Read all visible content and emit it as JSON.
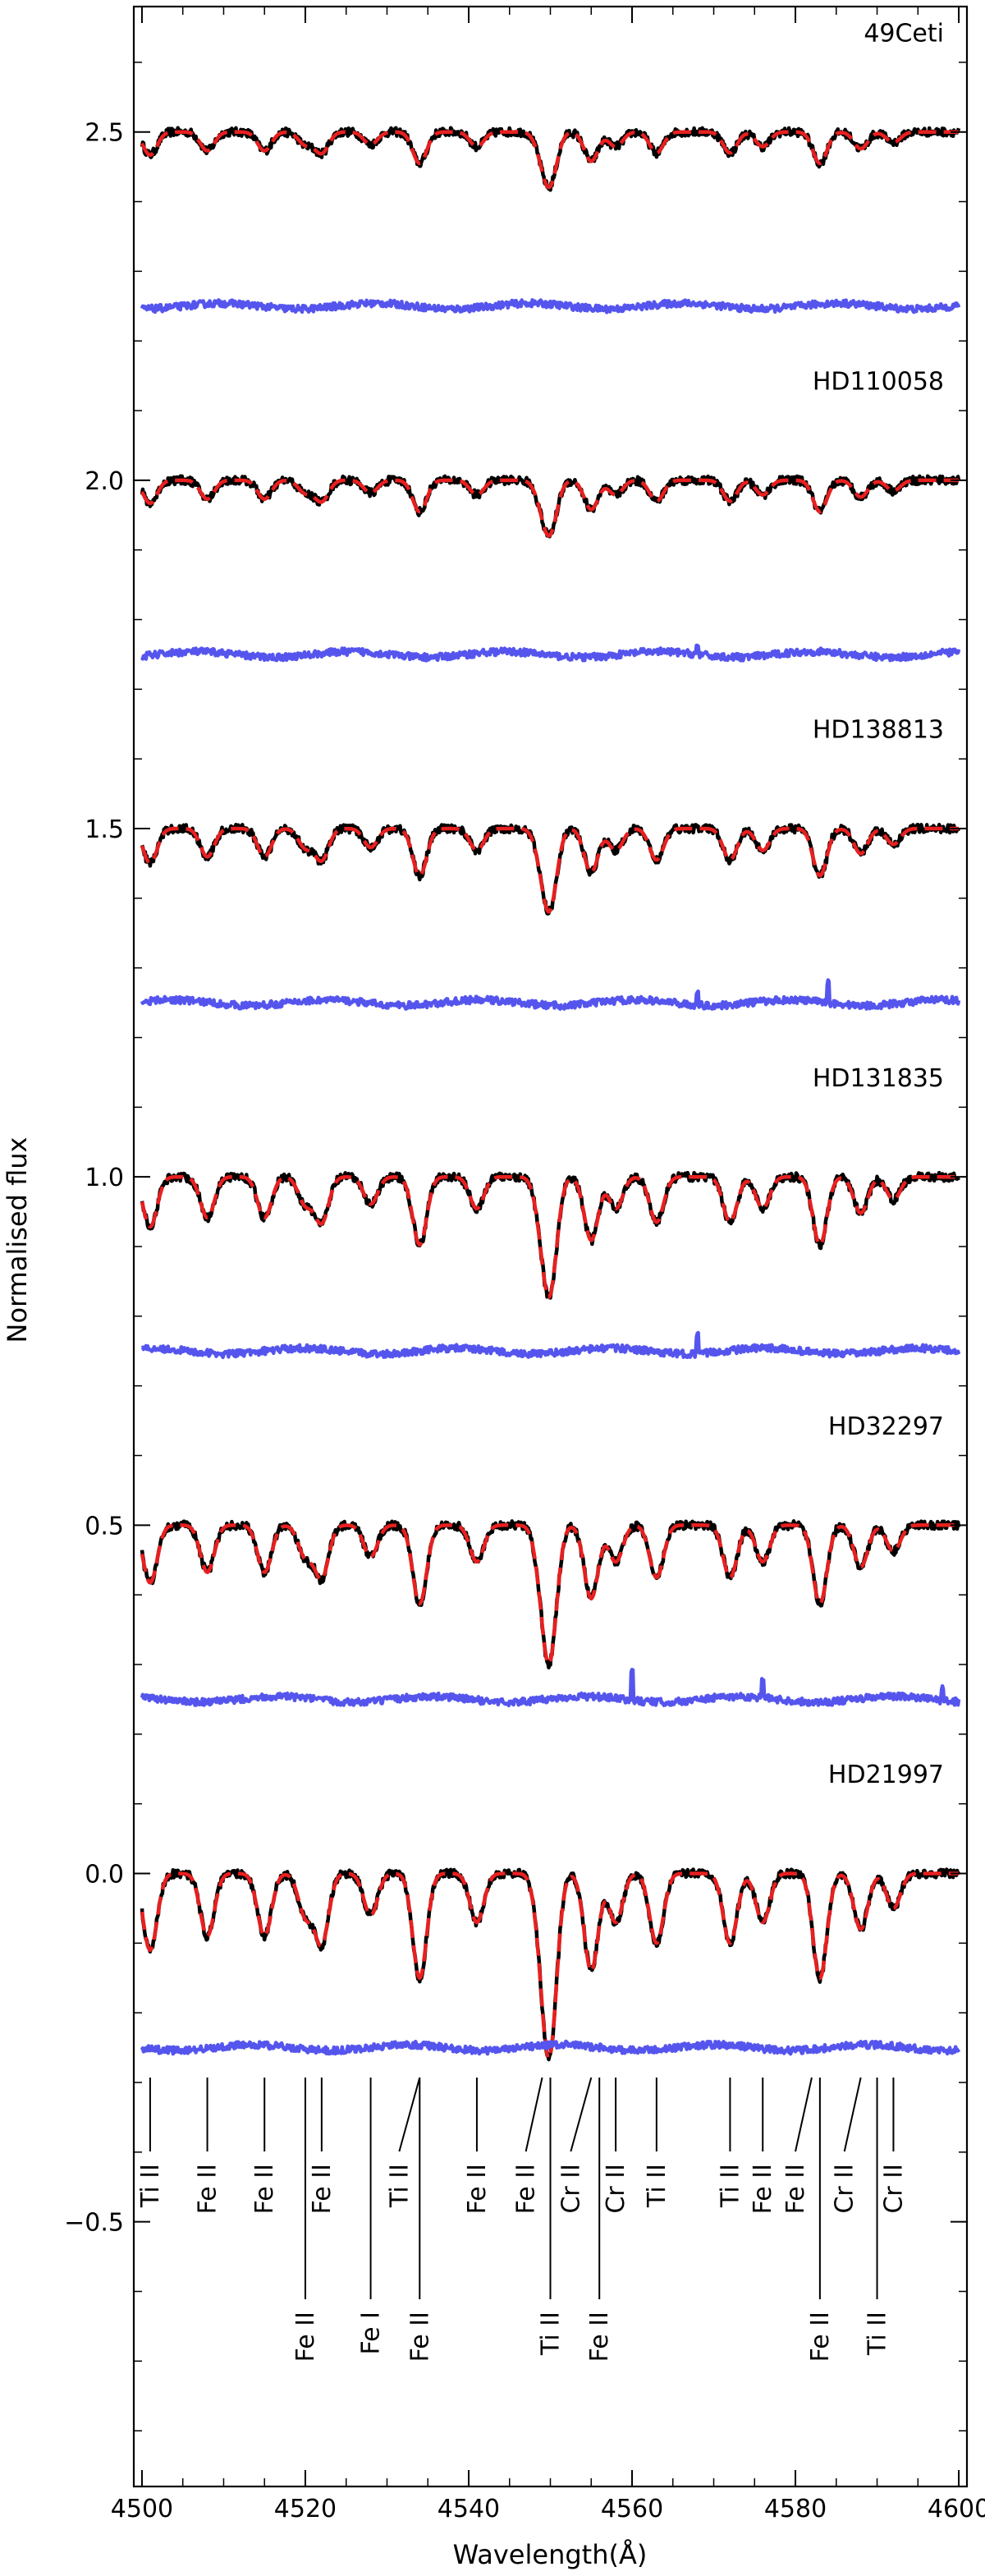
{
  "chart_data": {
    "type": "line",
    "title": "",
    "xlabel": "Wavelength(Å)",
    "ylabel": "Normalised flux",
    "xlim": [
      4499,
      4601
    ],
    "ylim": [
      -0.88,
      2.68
    ],
    "xticks": [
      4500,
      4520,
      4540,
      4560,
      4580,
      4600
    ],
    "yticks": [
      -0.5,
      0.0,
      0.5,
      1.0,
      1.5,
      2.0,
      2.5
    ],
    "ytick_labels": [
      "−0.5",
      "0.0",
      "0.5",
      "1.0",
      "1.5",
      "2.0",
      "2.5"
    ],
    "minor_ytick_step": 0.1,
    "minor_xtick_step": 5,
    "series_colors": {
      "observed": "#000000",
      "model": "#e82020",
      "residual": "#5555ee"
    },
    "stars": [
      {
        "name": "49Ceti",
        "offset": 2.5,
        "depth_scale": 0.3,
        "residual_level": 2.25,
        "residual_spikes": []
      },
      {
        "name": "HD110058",
        "offset": 2.0,
        "depth_scale": 0.3,
        "residual_level": 1.75,
        "residual_spikes": [
          {
            "x": 4568,
            "h": 0.012
          }
        ]
      },
      {
        "name": "HD138813",
        "offset": 1.5,
        "depth_scale": 0.45,
        "residual_level": 1.25,
        "residual_spikes": [
          {
            "x": 4584,
            "h": 0.03
          },
          {
            "x": 4568,
            "h": 0.015
          }
        ]
      },
      {
        "name": "HD131835",
        "offset": 1.0,
        "depth_scale": 0.65,
        "residual_level": 0.75,
        "residual_spikes": [
          {
            "x": 4568,
            "h": 0.025
          }
        ]
      },
      {
        "name": "HD32297",
        "offset": 0.5,
        "depth_scale": 0.75,
        "residual_level": 0.25,
        "residual_spikes": [
          {
            "x": 4560,
            "h": 0.04
          },
          {
            "x": 4576,
            "h": 0.025
          },
          {
            "x": 4598,
            "h": 0.02
          }
        ]
      },
      {
        "name": "HD21997",
        "offset": 0.0,
        "depth_scale": 1.0,
        "residual_level": -0.25,
        "residual_spikes": []
      }
    ],
    "absorption_lines": [
      {
        "x": 4501,
        "depth": 0.11
      },
      {
        "x": 4508,
        "depth": 0.09
      },
      {
        "x": 4515,
        "depth": 0.09
      },
      {
        "x": 4520,
        "depth": 0.06
      },
      {
        "x": 4522,
        "depth": 0.1
      },
      {
        "x": 4528,
        "depth": 0.06
      },
      {
        "x": 4534,
        "depth": 0.15
      },
      {
        "x": 4541,
        "depth": 0.07
      },
      {
        "x": 4549,
        "depth": 0.08
      },
      {
        "x": 4550,
        "depth": 0.22
      },
      {
        "x": 4555,
        "depth": 0.14
      },
      {
        "x": 4558,
        "depth": 0.07
      },
      {
        "x": 4563,
        "depth": 0.1
      },
      {
        "x": 4572,
        "depth": 0.1
      },
      {
        "x": 4576,
        "depth": 0.07
      },
      {
        "x": 4583,
        "depth": 0.15
      },
      {
        "x": 4588,
        "depth": 0.08
      },
      {
        "x": 4592,
        "depth": 0.05
      }
    ],
    "line_ids": [
      {
        "label": "Ti II",
        "x": 4501,
        "row": "upper",
        "slant": 0
      },
      {
        "label": "Fe II",
        "x": 4508,
        "row": "upper",
        "slant": 0
      },
      {
        "label": "Fe II",
        "x": 4515,
        "row": "upper",
        "slant": 0
      },
      {
        "label": "Fe II",
        "x": 4520,
        "row": "lower",
        "slant": 0
      },
      {
        "label": "Fe II",
        "x": 4522,
        "row": "upper",
        "slant": 0
      },
      {
        "label": "Fe I",
        "x": 4528,
        "row": "lower",
        "slant": 0
      },
      {
        "label": "Ti II",
        "x": 4534,
        "row": "upper",
        "slant": -2.5
      },
      {
        "label": "Fe II",
        "x": 4534,
        "row": "lower",
        "slant": 0
      },
      {
        "label": "Fe II",
        "x": 4541,
        "row": "upper",
        "slant": 0
      },
      {
        "label": "Fe II",
        "x": 4549,
        "row": "upper",
        "slant": -2
      },
      {
        "label": "Ti II",
        "x": 4550,
        "row": "lower",
        "slant": 0
      },
      {
        "label": "Cr II",
        "x": 4555,
        "row": "upper",
        "slant": -2.5
      },
      {
        "label": "Fe II",
        "x": 4556,
        "row": "lower",
        "slant": 0
      },
      {
        "label": "Cr II",
        "x": 4558,
        "row": "upper",
        "slant": 0
      },
      {
        "label": "Ti II",
        "x": 4563,
        "row": "upper",
        "slant": 0
      },
      {
        "label": "Ti II",
        "x": 4572,
        "row": "upper",
        "slant": 0
      },
      {
        "label": "Fe II",
        "x": 4576,
        "row": "upper",
        "slant": 0
      },
      {
        "label": "Fe II",
        "x": 4582,
        "row": "upper",
        "slant": -2
      },
      {
        "label": "Fe II",
        "x": 4583,
        "row": "lower",
        "slant": 0
      },
      {
        "label": "Cr II",
        "x": 4588,
        "row": "upper",
        "slant": -2
      },
      {
        "label": "Ti II",
        "x": 4590,
        "row": "lower",
        "slant": 0
      },
      {
        "label": "Cr II",
        "x": 4592,
        "row": "upper",
        "slant": 0
      }
    ]
  }
}
